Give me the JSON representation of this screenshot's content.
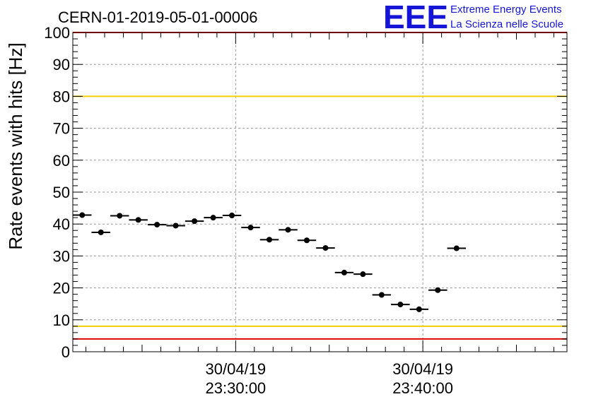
{
  "header": {
    "title": "CERN-01-2019-05-01-00006",
    "logo_mark": "EEE",
    "logo_line1": "Extreme Energy Events",
    "logo_line2": "La Scienza nelle Scuole"
  },
  "colors": {
    "threshold_yellow": "#f0d000",
    "threshold_red": "#e00000",
    "marker": "#000000",
    "logo": "#1515d8"
  },
  "chart_data": {
    "type": "scatter",
    "ylabel": "Rate events with hits [Hz]",
    "ylim": [
      0,
      100
    ],
    "y_major_ticks": [
      0,
      10,
      20,
      30,
      40,
      50,
      60,
      70,
      80,
      90,
      100
    ],
    "x_unit": "minutes",
    "xlim": [
      21.3,
      47.7
    ],
    "x_tick_labels": [
      {
        "x": 30,
        "date": "30/04/19",
        "time": "23:30:00"
      },
      {
        "x": 40,
        "date": "30/04/19",
        "time": "23:40:00"
      }
    ],
    "bin_width": 1,
    "points": [
      {
        "x": 21.8,
        "y": 42.8
      },
      {
        "x": 22.8,
        "y": 37.4
      },
      {
        "x": 23.8,
        "y": 42.6
      },
      {
        "x": 24.8,
        "y": 41.3
      },
      {
        "x": 25.8,
        "y": 39.8
      },
      {
        "x": 26.8,
        "y": 39.5
      },
      {
        "x": 27.8,
        "y": 40.9
      },
      {
        "x": 28.8,
        "y": 42.0
      },
      {
        "x": 29.8,
        "y": 42.7
      },
      {
        "x": 30.8,
        "y": 38.9
      },
      {
        "x": 31.8,
        "y": 35.1
      },
      {
        "x": 32.8,
        "y": 38.2
      },
      {
        "x": 33.8,
        "y": 34.9
      },
      {
        "x": 34.8,
        "y": 32.5
      },
      {
        "x": 35.8,
        "y": 24.8
      },
      {
        "x": 36.8,
        "y": 24.3
      },
      {
        "x": 37.8,
        "y": 17.8
      },
      {
        "x": 38.8,
        "y": 14.8
      },
      {
        "x": 39.8,
        "y": 13.3
      },
      {
        "x": 40.8,
        "y": 19.3
      },
      {
        "x": 41.8,
        "y": 32.4
      }
    ],
    "thresholds": [
      {
        "y": 80,
        "color": "#f0d000"
      },
      {
        "y": 8,
        "color": "#f0d000"
      },
      {
        "y": 100,
        "color": "#e00000"
      },
      {
        "y": 4,
        "color": "#e00000"
      }
    ],
    "grid": true
  }
}
